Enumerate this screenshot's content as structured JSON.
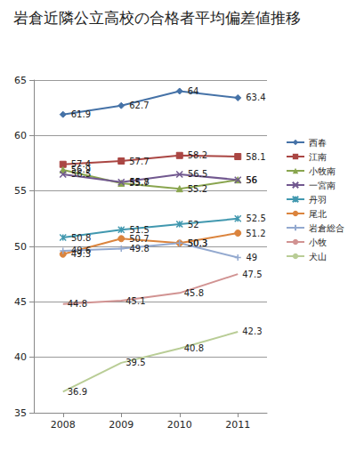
{
  "chart_data": {
    "type": "line",
    "title": "岩倉近隣公立高校の合格者平均偏差値推移",
    "categories": [
      "2008",
      "2009",
      "2010",
      "2011"
    ],
    "series": [
      {
        "name": "西春",
        "color": "#4572A7",
        "marker": "diamond",
        "values": [
          61.9,
          62.7,
          64,
          63.4
        ]
      },
      {
        "name": "江南",
        "color": "#AA4643",
        "marker": "square",
        "values": [
          57.4,
          57.7,
          58.2,
          58.1
        ]
      },
      {
        "name": "小牧南",
        "color": "#89A54E",
        "marker": "triangle",
        "values": [
          56.9,
          55.7,
          55.2,
          56
        ]
      },
      {
        "name": "一宮南",
        "color": "#71588F",
        "marker": "x",
        "values": [
          56.5,
          55.8,
          56.5,
          56
        ]
      },
      {
        "name": "丹羽",
        "color": "#4198AF",
        "marker": "star",
        "values": [
          50.8,
          51.5,
          52,
          52.5
        ]
      },
      {
        "name": "尾北",
        "color": "#DB843D",
        "marker": "circle",
        "values": [
          49.3,
          50.7,
          50.3,
          51.2
        ]
      },
      {
        "name": "岩倉総合",
        "color": "#93A9CF",
        "marker": "plus",
        "values": [
          49.6,
          49.8,
          50.3,
          49
        ]
      },
      {
        "name": "小牧",
        "color": "#D19392",
        "marker": "none",
        "values": [
          44.8,
          45.1,
          45.8,
          47.5
        ]
      },
      {
        "name": "犬山",
        "color": "#B9CD96",
        "marker": "none",
        "values": [
          36.9,
          39.5,
          40.8,
          42.3
        ]
      }
    ],
    "ylim": [
      35,
      65
    ],
    "yticks": [
      35,
      40,
      45,
      50,
      55,
      60,
      65
    ],
    "grid": true,
    "legend": "right",
    "data_labels": true
  }
}
